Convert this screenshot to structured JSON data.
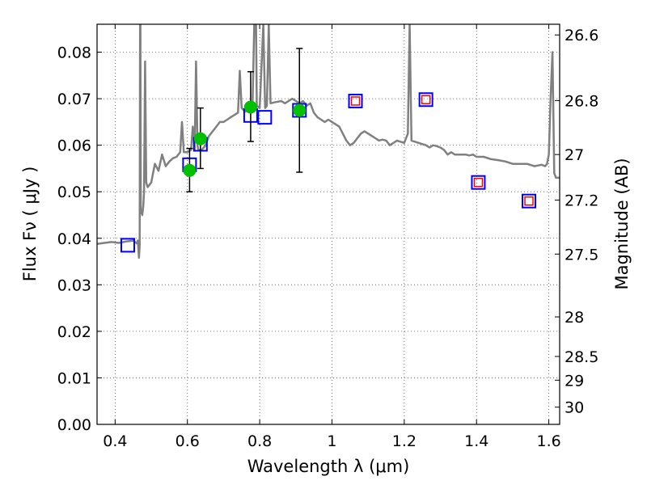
{
  "chart_data": {
    "type": "scatter",
    "xlabel": "Wavelength  λ (μm)",
    "ylabel": "Flux  Fν  ( μJy )",
    "y2label": "Magnitude (AB)",
    "xlim": [
      0.35,
      1.63
    ],
    "ylim": [
      0.0,
      0.086
    ],
    "grid": true,
    "x_ticks": [
      0.4,
      0.6,
      0.8,
      1.0,
      1.2,
      1.4,
      1.6
    ],
    "x_tick_labels": [
      "0.4",
      "0.6",
      "0.8",
      "1",
      "1.2",
      "1.4",
      "1.6"
    ],
    "y_ticks": [
      0.0,
      0.01,
      0.02,
      0.03,
      0.04,
      0.05,
      0.06,
      0.07,
      0.08
    ],
    "y_tick_labels": [
      "0.00",
      "0.01",
      "0.02",
      "0.03",
      "0.04",
      "0.05",
      "0.06",
      "0.07",
      "0.08"
    ],
    "y2_ticks": [
      {
        "label": "26.6",
        "flux": 0.0837
      },
      {
        "label": "26.8",
        "flux": 0.0696
      },
      {
        "label": "27",
        "flux": 0.058
      },
      {
        "label": "27.2",
        "flux": 0.0482
      },
      {
        "label": "27.5",
        "flux": 0.0366
      },
      {
        "label": "28",
        "flux": 0.0231
      },
      {
        "label": "28.5",
        "flux": 0.0146
      },
      {
        "label": "29",
        "flux": 0.0095
      },
      {
        "label": "30",
        "flux": 0.0037
      }
    ],
    "colors": {
      "model": "#808080",
      "observed": "#00c000",
      "error_bar": "#000000",
      "model_photometry_box": "#0000ff",
      "upper_limit_box": "#ff0000"
    },
    "series": [
      {
        "name": "model_spectrum",
        "style": "line",
        "points": [
          [
            0.35,
            0.0388
          ],
          [
            0.37,
            0.039
          ],
          [
            0.39,
            0.0392
          ],
          [
            0.41,
            0.039
          ],
          [
            0.43,
            0.0393
          ],
          [
            0.45,
            0.0395
          ],
          [
            0.46,
            0.0389
          ],
          [
            0.463,
            0.0395
          ],
          [
            0.466,
            0.0358
          ],
          [
            0.468,
            0.0385
          ],
          [
            0.469,
            0.086
          ],
          [
            0.47,
            0.086
          ],
          [
            0.471,
            0.046
          ],
          [
            0.475,
            0.045
          ],
          [
            0.478,
            0.047
          ],
          [
            0.48,
            0.05
          ],
          [
            0.483,
            0.078
          ],
          [
            0.486,
            0.052
          ],
          [
            0.49,
            0.051
          ],
          [
            0.5,
            0.052
          ],
          [
            0.51,
            0.056
          ],
          [
            0.52,
            0.0545
          ],
          [
            0.53,
            0.058
          ],
          [
            0.54,
            0.0555
          ],
          [
            0.55,
            0.0565
          ],
          [
            0.56,
            0.0572
          ],
          [
            0.57,
            0.0575
          ],
          [
            0.58,
            0.0585
          ],
          [
            0.585,
            0.065
          ],
          [
            0.59,
            0.0585
          ],
          [
            0.6,
            0.0585
          ],
          [
            0.61,
            0.059
          ],
          [
            0.615,
            0.064
          ],
          [
            0.62,
            0.059
          ],
          [
            0.624,
            0.078
          ],
          [
            0.628,
            0.06
          ],
          [
            0.63,
            0.059
          ],
          [
            0.64,
            0.059
          ],
          [
            0.65,
            0.06
          ],
          [
            0.66,
            0.062
          ],
          [
            0.67,
            0.063
          ],
          [
            0.68,
            0.064
          ],
          [
            0.69,
            0.065
          ],
          [
            0.7,
            0.065
          ],
          [
            0.71,
            0.0655
          ],
          [
            0.72,
            0.066
          ],
          [
            0.73,
            0.0665
          ],
          [
            0.74,
            0.067
          ],
          [
            0.745,
            0.076
          ],
          [
            0.75,
            0.068
          ],
          [
            0.76,
            0.0672
          ],
          [
            0.77,
            0.0678
          ],
          [
            0.78,
            0.0682
          ],
          [
            0.785,
            0.086
          ],
          [
            0.79,
            0.086
          ],
          [
            0.792,
            0.0685
          ],
          [
            0.8,
            0.068
          ],
          [
            0.81,
            0.086
          ],
          [
            0.815,
            0.068
          ],
          [
            0.82,
            0.0685
          ],
          [
            0.825,
            0.086
          ],
          [
            0.83,
            0.069
          ],
          [
            0.84,
            0.0692
          ],
          [
            0.86,
            0.0695
          ],
          [
            0.87,
            0.069
          ],
          [
            0.89,
            0.07
          ],
          [
            0.91,
            0.069
          ],
          [
            0.92,
            0.0695
          ],
          [
            0.93,
            0.0685
          ],
          [
            0.94,
            0.069
          ],
          [
            0.95,
            0.067
          ],
          [
            0.96,
            0.066
          ],
          [
            0.97,
            0.0655
          ],
          [
            0.98,
            0.065
          ],
          [
            0.99,
            0.0655
          ],
          [
            1.0,
            0.065
          ],
          [
            1.01,
            0.0645
          ],
          [
            1.02,
            0.064
          ],
          [
            1.03,
            0.0625
          ],
          [
            1.04,
            0.061
          ],
          [
            1.05,
            0.06
          ],
          [
            1.06,
            0.0605
          ],
          [
            1.07,
            0.0615
          ],
          [
            1.08,
            0.0625
          ],
          [
            1.09,
            0.063
          ],
          [
            1.1,
            0.0625
          ],
          [
            1.11,
            0.062
          ],
          [
            1.12,
            0.0615
          ],
          [
            1.13,
            0.061
          ],
          [
            1.14,
            0.0612
          ],
          [
            1.15,
            0.061
          ],
          [
            1.16,
            0.06
          ],
          [
            1.17,
            0.0605
          ],
          [
            1.18,
            0.061
          ],
          [
            1.2,
            0.0605
          ],
          [
            1.21,
            0.0625
          ],
          [
            1.215,
            0.086
          ],
          [
            1.22,
            0.061
          ],
          [
            1.24,
            0.0605
          ],
          [
            1.26,
            0.06
          ],
          [
            1.27,
            0.0595
          ],
          [
            1.28,
            0.06
          ],
          [
            1.29,
            0.0598
          ],
          [
            1.3,
            0.0595
          ],
          [
            1.31,
            0.059
          ],
          [
            1.32,
            0.058
          ],
          [
            1.33,
            0.0585
          ],
          [
            1.34,
            0.058
          ],
          [
            1.35,
            0.058
          ],
          [
            1.36,
            0.058
          ],
          [
            1.37,
            0.058
          ],
          [
            1.38,
            0.0578
          ],
          [
            1.39,
            0.058
          ],
          [
            1.4,
            0.0575
          ],
          [
            1.42,
            0.0575
          ],
          [
            1.44,
            0.057
          ],
          [
            1.46,
            0.0568
          ],
          [
            1.48,
            0.0565
          ],
          [
            1.5,
            0.056
          ],
          [
            1.52,
            0.056
          ],
          [
            1.54,
            0.056
          ],
          [
            1.56,
            0.0555
          ],
          [
            1.58,
            0.0558
          ],
          [
            1.59,
            0.0555
          ],
          [
            1.595,
            0.056
          ],
          [
            1.6,
            0.058
          ],
          [
            1.605,
            0.07
          ],
          [
            1.61,
            0.08
          ],
          [
            1.615,
            0.054
          ],
          [
            1.62,
            0.053
          ],
          [
            1.63,
            0.053
          ]
        ]
      },
      {
        "name": "observed_photometry",
        "style": "marker",
        "points": [
          {
            "x": 0.606,
            "y": 0.0546,
            "err_low": 0.05,
            "err_high": 0.0593
          },
          {
            "x": 0.636,
            "y": 0.0614,
            "err_low": 0.055,
            "err_high": 0.068
          },
          {
            "x": 0.775,
            "y": 0.0682,
            "err_low": 0.0608,
            "err_high": 0.0758
          },
          {
            "x": 0.91,
            "y": 0.0675,
            "err_low": 0.0542,
            "err_high": 0.0808
          }
        ]
      },
      {
        "name": "model_photometry",
        "style": "box",
        "points": [
          {
            "x": 0.435,
            "y": 0.0385
          },
          {
            "x": 0.606,
            "y": 0.0558
          },
          {
            "x": 0.636,
            "y": 0.0602
          },
          {
            "x": 0.775,
            "y": 0.0664
          },
          {
            "x": 0.814,
            "y": 0.066
          },
          {
            "x": 0.91,
            "y": 0.0675
          }
        ]
      },
      {
        "name": "upper_limits",
        "style": "box",
        "points": [
          {
            "x": 1.065,
            "y": 0.0695
          },
          {
            "x": 1.26,
            "y": 0.0698
          },
          {
            "x": 1.405,
            "y": 0.052
          },
          {
            "x": 1.545,
            "y": 0.048
          }
        ]
      }
    ]
  }
}
